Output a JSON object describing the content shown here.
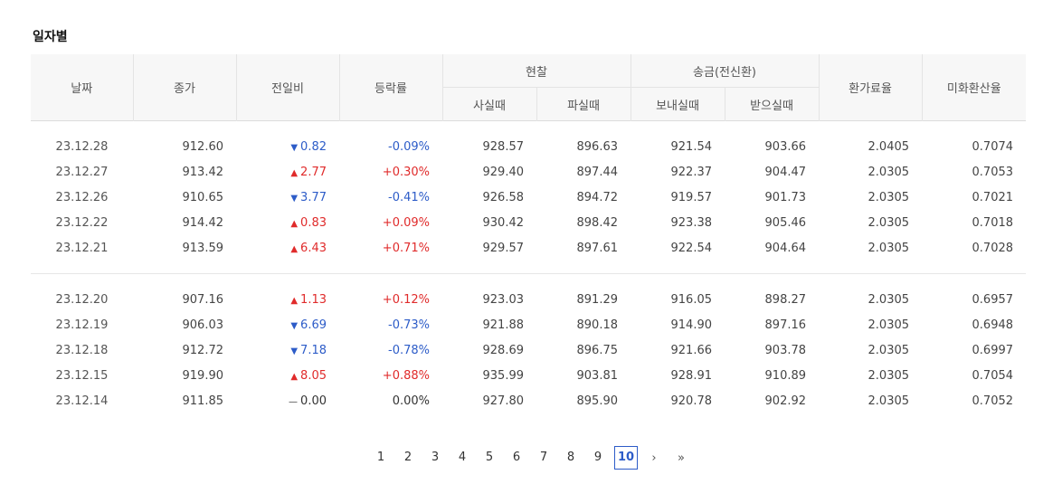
{
  "section_title": "일자별",
  "header": {
    "date": "날짜",
    "close": "종가",
    "change": "전일비",
    "rate": "등락률",
    "cash": "현찰",
    "cash_buy": "사실때",
    "cash_sell": "파실때",
    "transfer": "송금(전신환)",
    "transfer_send": "보내실때",
    "transfer_receive": "받으실때",
    "exchange_fee": "환가료율",
    "usd_rate": "미화환산율"
  },
  "rows": [
    {
      "date": "23.12.28",
      "close": "912.60",
      "dir": "down",
      "arrow": "▼",
      "change": "0.82",
      "rate": "-0.09%",
      "cash_buy": "928.57",
      "cash_sell": "896.63",
      "send": "921.54",
      "receive": "903.66",
      "fee": "2.0405",
      "usd": "0.7074"
    },
    {
      "date": "23.12.27",
      "close": "913.42",
      "dir": "up",
      "arrow": "▲",
      "change": "2.77",
      "rate": "+0.30%",
      "cash_buy": "929.40",
      "cash_sell": "897.44",
      "send": "922.37",
      "receive": "904.47",
      "fee": "2.0305",
      "usd": "0.7053"
    },
    {
      "date": "23.12.26",
      "close": "910.65",
      "dir": "down",
      "arrow": "▼",
      "change": "3.77",
      "rate": "-0.41%",
      "cash_buy": "926.58",
      "cash_sell": "894.72",
      "send": "919.57",
      "receive": "901.73",
      "fee": "2.0305",
      "usd": "0.7021"
    },
    {
      "date": "23.12.22",
      "close": "914.42",
      "dir": "up",
      "arrow": "▲",
      "change": "0.83",
      "rate": "+0.09%",
      "cash_buy": "930.42",
      "cash_sell": "898.42",
      "send": "923.38",
      "receive": "905.46",
      "fee": "2.0305",
      "usd": "0.7018"
    },
    {
      "date": "23.12.21",
      "close": "913.59",
      "dir": "up",
      "arrow": "▲",
      "change": "6.43",
      "rate": "+0.71%",
      "cash_buy": "929.57",
      "cash_sell": "897.61",
      "send": "922.54",
      "receive": "904.64",
      "fee": "2.0305",
      "usd": "0.7028"
    },
    {
      "date": "23.12.20",
      "close": "907.16",
      "dir": "up",
      "arrow": "▲",
      "change": "1.13",
      "rate": "+0.12%",
      "cash_buy": "923.03",
      "cash_sell": "891.29",
      "send": "916.05",
      "receive": "898.27",
      "fee": "2.0305",
      "usd": "0.6957"
    },
    {
      "date": "23.12.19",
      "close": "906.03",
      "dir": "down",
      "arrow": "▼",
      "change": "6.69",
      "rate": "-0.73%",
      "cash_buy": "921.88",
      "cash_sell": "890.18",
      "send": "914.90",
      "receive": "897.16",
      "fee": "2.0305",
      "usd": "0.6948"
    },
    {
      "date": "23.12.18",
      "close": "912.72",
      "dir": "down",
      "arrow": "▼",
      "change": "7.18",
      "rate": "-0.78%",
      "cash_buy": "928.69",
      "cash_sell": "896.75",
      "send": "921.66",
      "receive": "903.78",
      "fee": "2.0305",
      "usd": "0.6997"
    },
    {
      "date": "23.12.15",
      "close": "919.90",
      "dir": "up",
      "arrow": "▲",
      "change": "8.05",
      "rate": "+0.88%",
      "cash_buy": "935.99",
      "cash_sell": "903.81",
      "send": "928.91",
      "receive": "910.89",
      "fee": "2.0305",
      "usd": "0.7054"
    },
    {
      "date": "23.12.14",
      "close": "911.85",
      "dir": "flat",
      "arrow": "—",
      "change": "0.00",
      "rate": "0.00%",
      "cash_buy": "927.80",
      "cash_sell": "895.90",
      "send": "920.78",
      "receive": "902.92",
      "fee": "2.0305",
      "usd": "0.7052"
    }
  ],
  "pagination": {
    "pages": [
      "1",
      "2",
      "3",
      "4",
      "5",
      "6",
      "7",
      "8",
      "9",
      "10"
    ],
    "current": "10",
    "next": "›",
    "last": "»"
  }
}
